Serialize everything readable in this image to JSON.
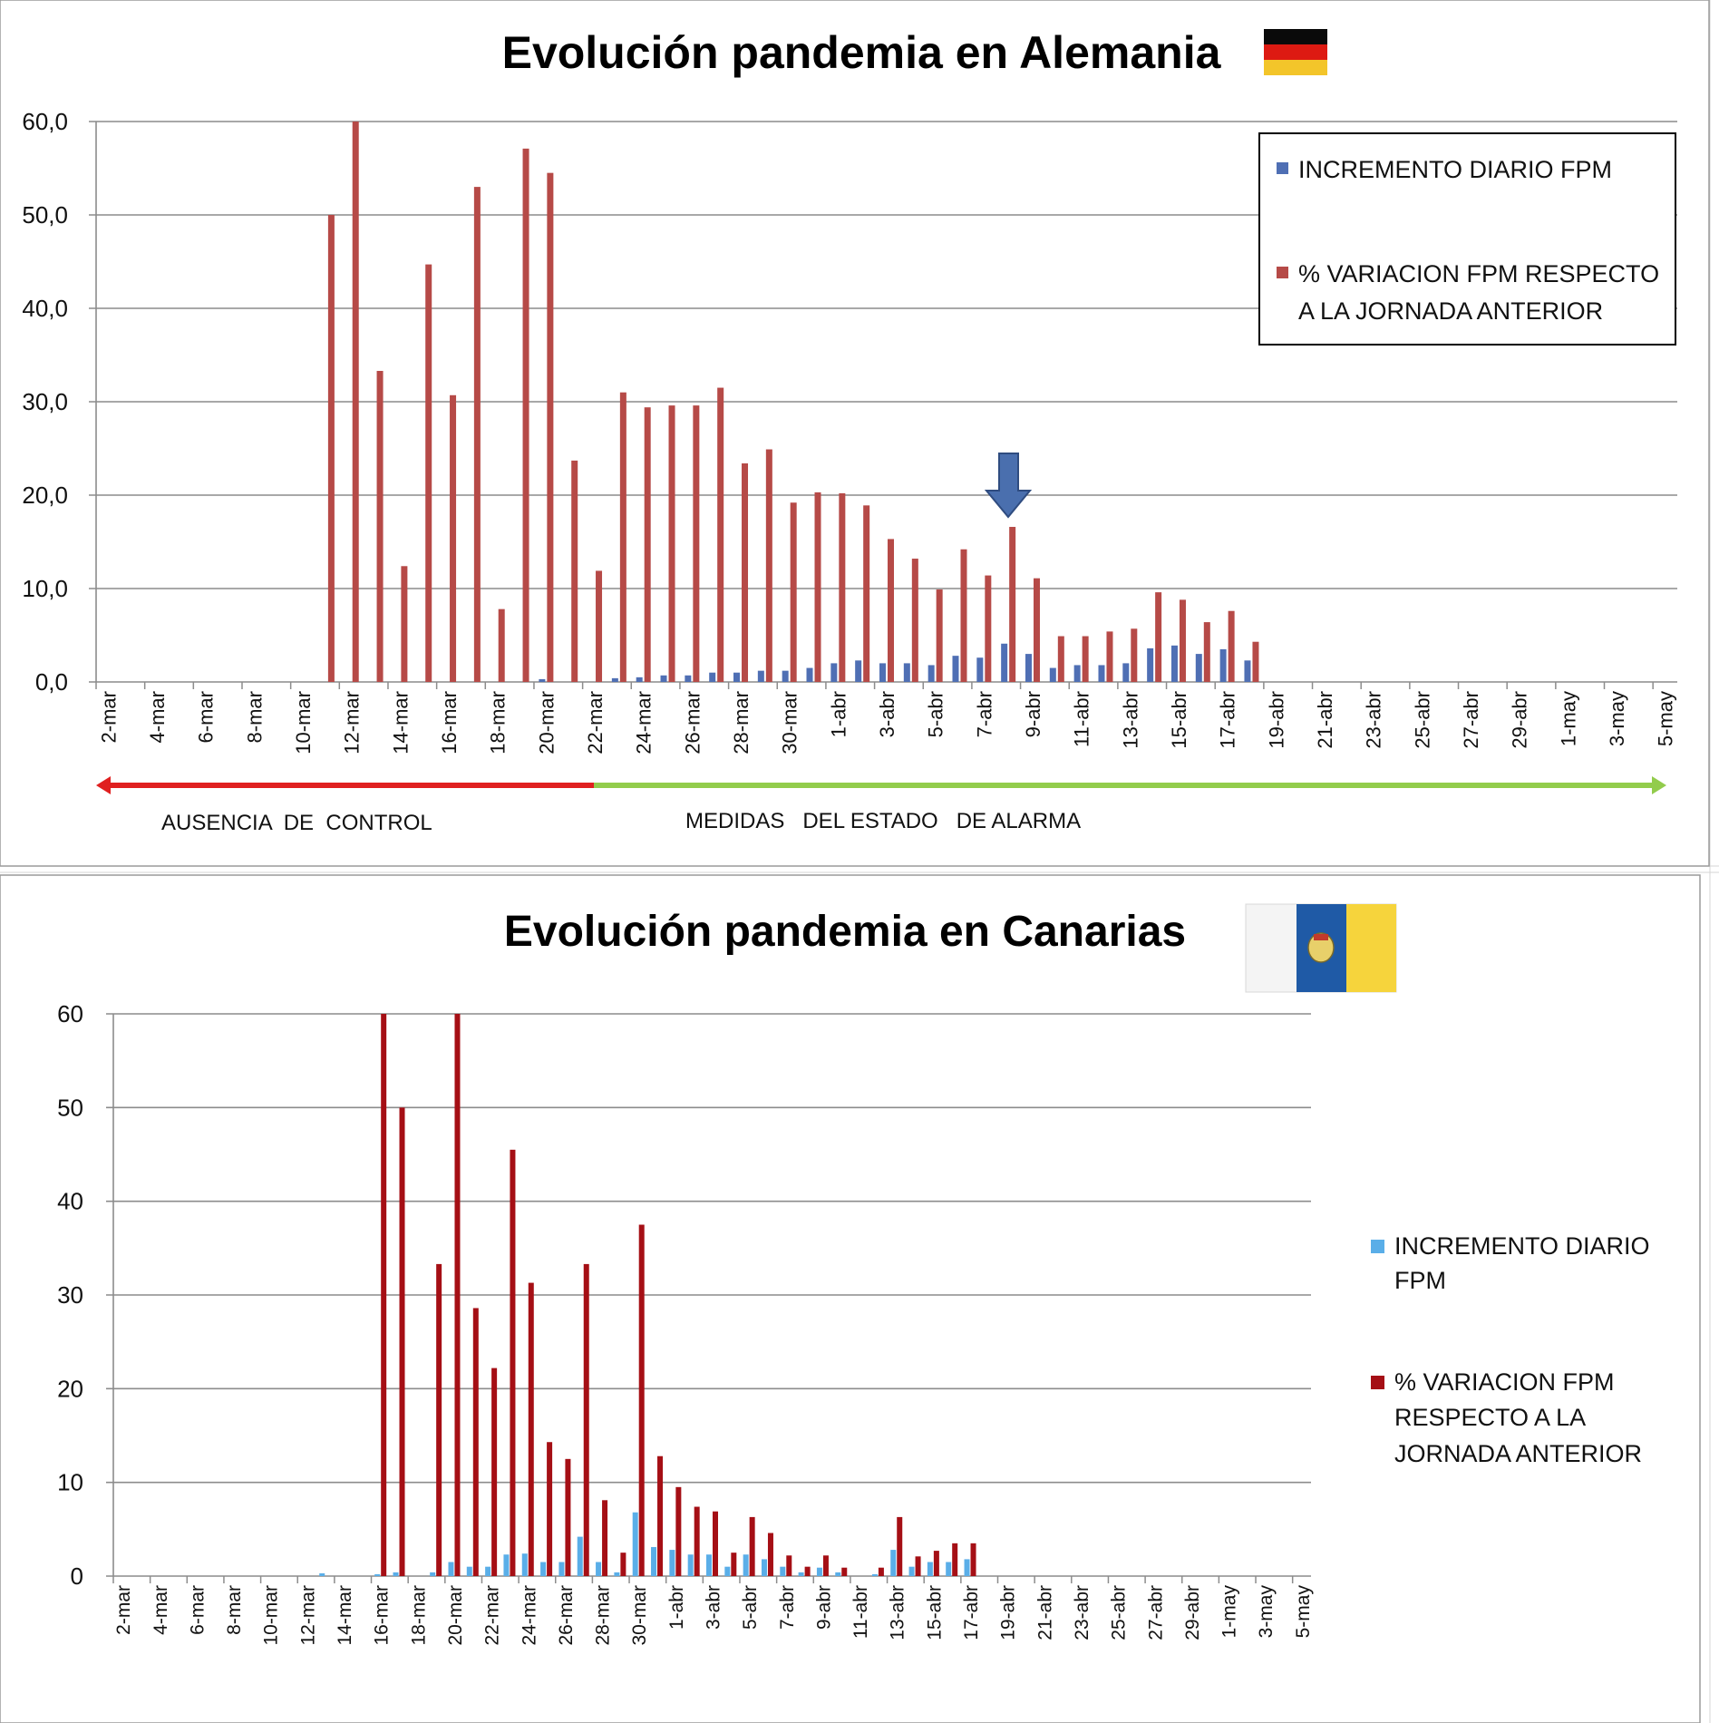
{
  "chart_data": [
    {
      "type": "bar",
      "title": "Evolución  pandemia  en Alemania",
      "xlabel": "",
      "ylabel": "",
      "ylim": [
        0,
        60
      ],
      "yticks": [
        "0,0",
        "10,0",
        "20,0",
        "30,0",
        "40,0",
        "50,0",
        "60,0"
      ],
      "grid": true,
      "legend_position": "top-right",
      "categories": [
        "2-mar",
        "3-mar",
        "4-mar",
        "5-mar",
        "6-mar",
        "7-mar",
        "8-mar",
        "9-mar",
        "10-mar",
        "11-mar",
        "12-mar",
        "13-mar",
        "14-mar",
        "15-mar",
        "16-mar",
        "17-mar",
        "18-mar",
        "19-mar",
        "20-mar",
        "21-mar",
        "22-mar",
        "23-mar",
        "24-mar",
        "25-mar",
        "26-mar",
        "27-mar",
        "28-mar",
        "29-mar",
        "30-mar",
        "31-mar",
        "1-abr",
        "2-abr",
        "3-abr",
        "4-abr",
        "5-abr",
        "6-abr",
        "7-abr",
        "8-abr",
        "9-abr",
        "10-abr",
        "11-abr",
        "12-abr",
        "13-abr",
        "14-abr",
        "15-abr",
        "16-abr",
        "17-abr",
        "18-abr",
        "19-abr",
        "20-abr",
        "21-abr",
        "22-abr",
        "23-abr",
        "24-abr",
        "25-abr",
        "26-abr",
        "27-abr",
        "28-abr",
        "29-abr",
        "30-abr",
        "1-may",
        "2-may",
        "3-may",
        "4-may",
        "5-may"
      ],
      "tick_labels": [
        "2-mar",
        "4-mar",
        "6-mar",
        "8-mar",
        "10-mar",
        "12-mar",
        "14-mar",
        "16-mar",
        "18-mar",
        "20-mar",
        "22-mar",
        "24-mar",
        "26-mar",
        "28-mar",
        "30-mar",
        "1-abr",
        "3-abr",
        "5-abr",
        "7-abr",
        "9-abr",
        "11-abr",
        "13-abr",
        "15-abr",
        "17-abr",
        "19-abr",
        "21-abr",
        "23-abr",
        "25-abr",
        "27-abr",
        "29-abr",
        "1-may",
        "3-may",
        "5-may"
      ],
      "series": [
        {
          "name": "INCREMENTO DIARIO FPM",
          "color": "#4f6fb4",
          "values": [
            0,
            0,
            0,
            0,
            0,
            0,
            0,
            0,
            0,
            0,
            0,
            0,
            0,
            0,
            0,
            0,
            0,
            0,
            0.3,
            0,
            0,
            0.4,
            0.5,
            0.7,
            0.7,
            1.0,
            1.0,
            1.2,
            1.2,
            1.5,
            2.0,
            2.3,
            2.0,
            2.0,
            1.8,
            2.8,
            2.6,
            4.1,
            3.0,
            1.5,
            1.8,
            1.8,
            2.0,
            3.6,
            3.9,
            3.0,
            3.5,
            2.3,
            0,
            0,
            0,
            0,
            0,
            0,
            0,
            0,
            0,
            0,
            0,
            0,
            0,
            0,
            0,
            0,
            0
          ]
        },
        {
          "name": "% VARIACION FPM RESPECTO A LA JORNADA ANTERIOR",
          "color": "#b64a47",
          "values": [
            0,
            0,
            0,
            0,
            0,
            0,
            0,
            0,
            0,
            50.0,
            60.0,
            33.3,
            12.4,
            44.7,
            30.7,
            53.0,
            7.8,
            57.1,
            54.5,
            23.7,
            11.9,
            31.0,
            29.4,
            29.6,
            29.6,
            31.5,
            23.4,
            24.9,
            19.2,
            20.3,
            20.2,
            18.9,
            15.3,
            13.2,
            9.9,
            14.2,
            11.4,
            16.6,
            11.1,
            4.9,
            4.9,
            5.4,
            5.7,
            9.6,
            8.8,
            6.4,
            7.6,
            4.3,
            0,
            0,
            0,
            0,
            0,
            0,
            0,
            0,
            0,
            0,
            0,
            0,
            0,
            0,
            0,
            0,
            0
          ]
        }
      ],
      "legend_lines": [
        [
          "INCREMENTO DIARIO FPM"
        ],
        [
          "% VARIACION FPM RESPECTO",
          "A LA JORNADA ANTERIOR"
        ]
      ],
      "annotations": {
        "phase_left": "AUSENCIA  DE  CONTROL",
        "phase_right": "MEDIDAS   DEL ESTADO   DE ALARMA"
      },
      "flag": "germany-flag",
      "colors": {
        "phase_left_arrow": "#e02020",
        "phase_right_arrow": "#92cc4c",
        "marker_arrow": "#4a6fae"
      }
    },
    {
      "type": "bar",
      "title": "Evolución  pandemia  en Canarias",
      "xlabel": "",
      "ylabel": "",
      "ylim": [
        0,
        60
      ],
      "yticks": [
        "0",
        "10",
        "20",
        "30",
        "40",
        "50",
        "60"
      ],
      "grid": true,
      "legend_position": "right",
      "categories": [
        "2-mar",
        "3-mar",
        "4-mar",
        "5-mar",
        "6-mar",
        "7-mar",
        "8-mar",
        "9-mar",
        "10-mar",
        "11-mar",
        "12-mar",
        "13-mar",
        "14-mar",
        "15-mar",
        "16-mar",
        "17-mar",
        "18-mar",
        "19-mar",
        "20-mar",
        "21-mar",
        "22-mar",
        "23-mar",
        "24-mar",
        "25-mar",
        "26-mar",
        "27-mar",
        "28-mar",
        "29-mar",
        "30-mar",
        "31-mar",
        "1-abr",
        "2-abr",
        "3-abr",
        "4-abr",
        "5-abr",
        "6-abr",
        "7-abr",
        "8-abr",
        "9-abr",
        "10-abr",
        "11-abr",
        "12-abr",
        "13-abr",
        "14-abr",
        "15-abr",
        "16-abr",
        "17-abr",
        "18-abr",
        "19-abr",
        "20-abr",
        "21-abr",
        "22-abr",
        "23-abr",
        "24-abr",
        "25-abr",
        "26-abr",
        "27-abr",
        "28-abr",
        "29-abr",
        "30-abr",
        "1-may",
        "2-may",
        "3-may",
        "4-may",
        "5-may"
      ],
      "tick_labels": [
        "2-mar",
        "4-mar",
        "6-mar",
        "8-mar",
        "10-mar",
        "12-mar",
        "14-mar",
        "16-mar",
        "18-mar",
        "20-mar",
        "22-mar",
        "24-mar",
        "26-mar",
        "28-mar",
        "30-mar",
        "1-abr",
        "3-abr",
        "5-abr",
        "7-abr",
        "9-abr",
        "11-abr",
        "13-abr",
        "15-abr",
        "17-abr",
        "19-abr",
        "21-abr",
        "23-abr",
        "25-abr",
        "27-abr",
        "29-abr",
        "1-may",
        "3-may",
        "5-may"
      ],
      "series": [
        {
          "name": "INCREMENTO DIARIO FPM",
          "color": "#5aaee8",
          "values": [
            0,
            0,
            0,
            0,
            0,
            0,
            0,
            0,
            0,
            0,
            0,
            0.3,
            0,
            0,
            0.2,
            0.4,
            0,
            0.4,
            1.5,
            1.0,
            1.0,
            2.3,
            2.4,
            1.5,
            1.5,
            4.2,
            1.5,
            0.4,
            6.8,
            3.1,
            2.8,
            2.3,
            2.3,
            1.0,
            2.3,
            1.8,
            1.0,
            0.4,
            0.9,
            0.4,
            0,
            0.2,
            2.8,
            1.0,
            1.5,
            1.5,
            1.8,
            0,
            0,
            0,
            0,
            0,
            0,
            0,
            0,
            0,
            0,
            0,
            0,
            0,
            0,
            0,
            0,
            0,
            0
          ]
        },
        {
          "name": "% VARIACION FPM RESPECTO A LA JORNADA ANTERIOR",
          "color": "#a50f15",
          "values": [
            0,
            0,
            0,
            0,
            0,
            0,
            0,
            0,
            0,
            0,
            0,
            0,
            0,
            0,
            60.0,
            50.0,
            0,
            33.3,
            60.0,
            28.6,
            22.2,
            45.5,
            31.3,
            14.3,
            12.5,
            33.3,
            8.1,
            2.5,
            37.5,
            12.8,
            9.5,
            7.4,
            6.9,
            2.5,
            6.3,
            4.6,
            2.2,
            1.0,
            2.2,
            0.9,
            0,
            0.9,
            6.3,
            2.1,
            2.7,
            3.5,
            3.5,
            0,
            0,
            0,
            0,
            0,
            0,
            0,
            0,
            0,
            0,
            0,
            0,
            0,
            0,
            0,
            0,
            0,
            0
          ]
        }
      ],
      "legend_lines": [
        [
          "INCREMENTO DIARIO",
          "FPM"
        ],
        [
          "% VARIACION FPM",
          "RESPECTO A LA",
          "JORNADA ANTERIOR"
        ]
      ],
      "flag": "canary-islands-flag"
    }
  ]
}
